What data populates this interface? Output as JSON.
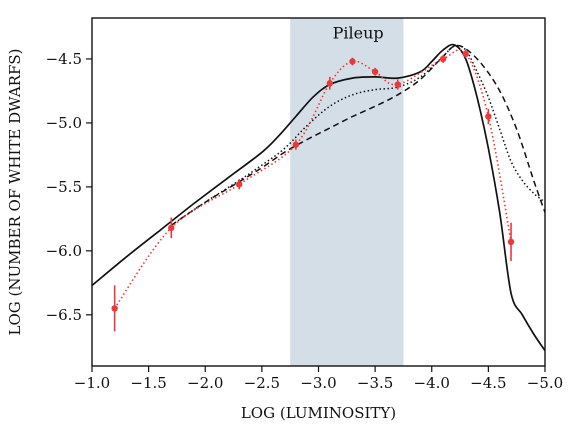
{
  "chart_data": {
    "type": "line",
    "title": "",
    "xlabel": "LOG (LUMINOSITY)",
    "ylabel": "LOG (NUMBER OF WHITE DWARFS)",
    "xlim": [
      -1.0,
      -5.0
    ],
    "ylim": [
      -6.9,
      -4.18
    ],
    "x_axis_reversed": true,
    "xticks": [
      -1.0,
      -1.5,
      -2.0,
      -2.5,
      -3.0,
      -3.5,
      -4.0,
      -4.5,
      -5.0
    ],
    "xtick_labels": [
      "−1.0",
      "−1.5",
      "−2.0",
      "−2.5",
      "−3.0",
      "−3.5",
      "−4.0",
      "−4.5",
      "−5.0"
    ],
    "yticks": [
      -6.5,
      -6.0,
      -5.5,
      -5.0,
      -4.5
    ],
    "ytick_labels": [
      "−6.5",
      "−6.0",
      "−5.5",
      "−5.0",
      "−4.5"
    ],
    "grid": false,
    "legend": "none",
    "shaded_region": {
      "x": [
        -2.75,
        -3.75
      ],
      "color": "#d4dee6"
    },
    "annotations": [
      {
        "text": "Pileup",
        "x": -3.35,
        "y": -4.34
      }
    ],
    "observed": {
      "color": "#e8393b",
      "x": [
        -1.2,
        -1.7,
        -2.3,
        -2.8,
        -3.1,
        -3.3,
        -3.5,
        -3.7,
        -4.1,
        -4.3,
        -4.5,
        -4.7
      ],
      "y": [
        -6.45,
        -5.82,
        -5.48,
        -5.17,
        -4.69,
        -4.52,
        -4.6,
        -4.7,
        -4.5,
        -4.46,
        -4.95,
        -5.93
      ],
      "yerr": [
        0.18,
        0.08,
        0.04,
        0.04,
        0.05,
        0.03,
        0.03,
        0.04,
        0.03,
        0.03,
        0.06,
        0.15
      ]
    },
    "series": [
      {
        "style": "solid",
        "color": "#111111",
        "x": [
          -1.0,
          -1.3,
          -1.6,
          -1.9,
          -2.2,
          -2.5,
          -2.65,
          -2.8,
          -2.95,
          -3.1,
          -3.3,
          -3.5,
          -3.7,
          -3.9,
          -4.0,
          -4.1,
          -4.2,
          -4.3,
          -4.4,
          -4.5,
          -4.6,
          -4.7,
          -4.8,
          -4.9,
          -5.0
        ],
        "y": [
          -6.27,
          -6.05,
          -5.84,
          -5.63,
          -5.43,
          -5.23,
          -5.1,
          -4.95,
          -4.8,
          -4.7,
          -4.65,
          -4.64,
          -4.65,
          -4.6,
          -4.52,
          -4.43,
          -4.39,
          -4.5,
          -4.8,
          -5.2,
          -5.7,
          -6.33,
          -6.5,
          -6.65,
          -6.78
        ]
      },
      {
        "style": "dotted",
        "color": "#111111",
        "x": [
          -1.7,
          -2.0,
          -2.3,
          -2.5,
          -2.7,
          -2.9,
          -3.1,
          -3.3,
          -3.5,
          -3.7,
          -3.9,
          -4.1,
          -4.2,
          -4.3,
          -4.4,
          -4.5,
          -4.6,
          -4.7,
          -4.8,
          -4.9,
          -5.0
        ],
        "y": [
          -5.8,
          -5.62,
          -5.45,
          -5.33,
          -5.2,
          -5.02,
          -4.87,
          -4.78,
          -4.74,
          -4.72,
          -4.64,
          -4.48,
          -4.4,
          -4.43,
          -4.6,
          -4.8,
          -5.05,
          -5.3,
          -5.45,
          -5.55,
          -5.62
        ]
      },
      {
        "style": "dashed",
        "color": "#111111",
        "x": [
          -1.7,
          -2.0,
          -2.3,
          -2.5,
          -2.7,
          -2.9,
          -3.1,
          -3.3,
          -3.5,
          -3.7,
          -3.9,
          -4.1,
          -4.2,
          -4.3,
          -4.45,
          -4.6,
          -4.75,
          -4.9,
          -5.0
        ],
        "y": [
          -5.8,
          -5.62,
          -5.46,
          -5.35,
          -5.23,
          -5.13,
          -5.04,
          -4.95,
          -4.87,
          -4.78,
          -4.66,
          -4.48,
          -4.4,
          -4.42,
          -4.55,
          -4.75,
          -5.05,
          -5.45,
          -5.7
        ]
      }
    ]
  }
}
